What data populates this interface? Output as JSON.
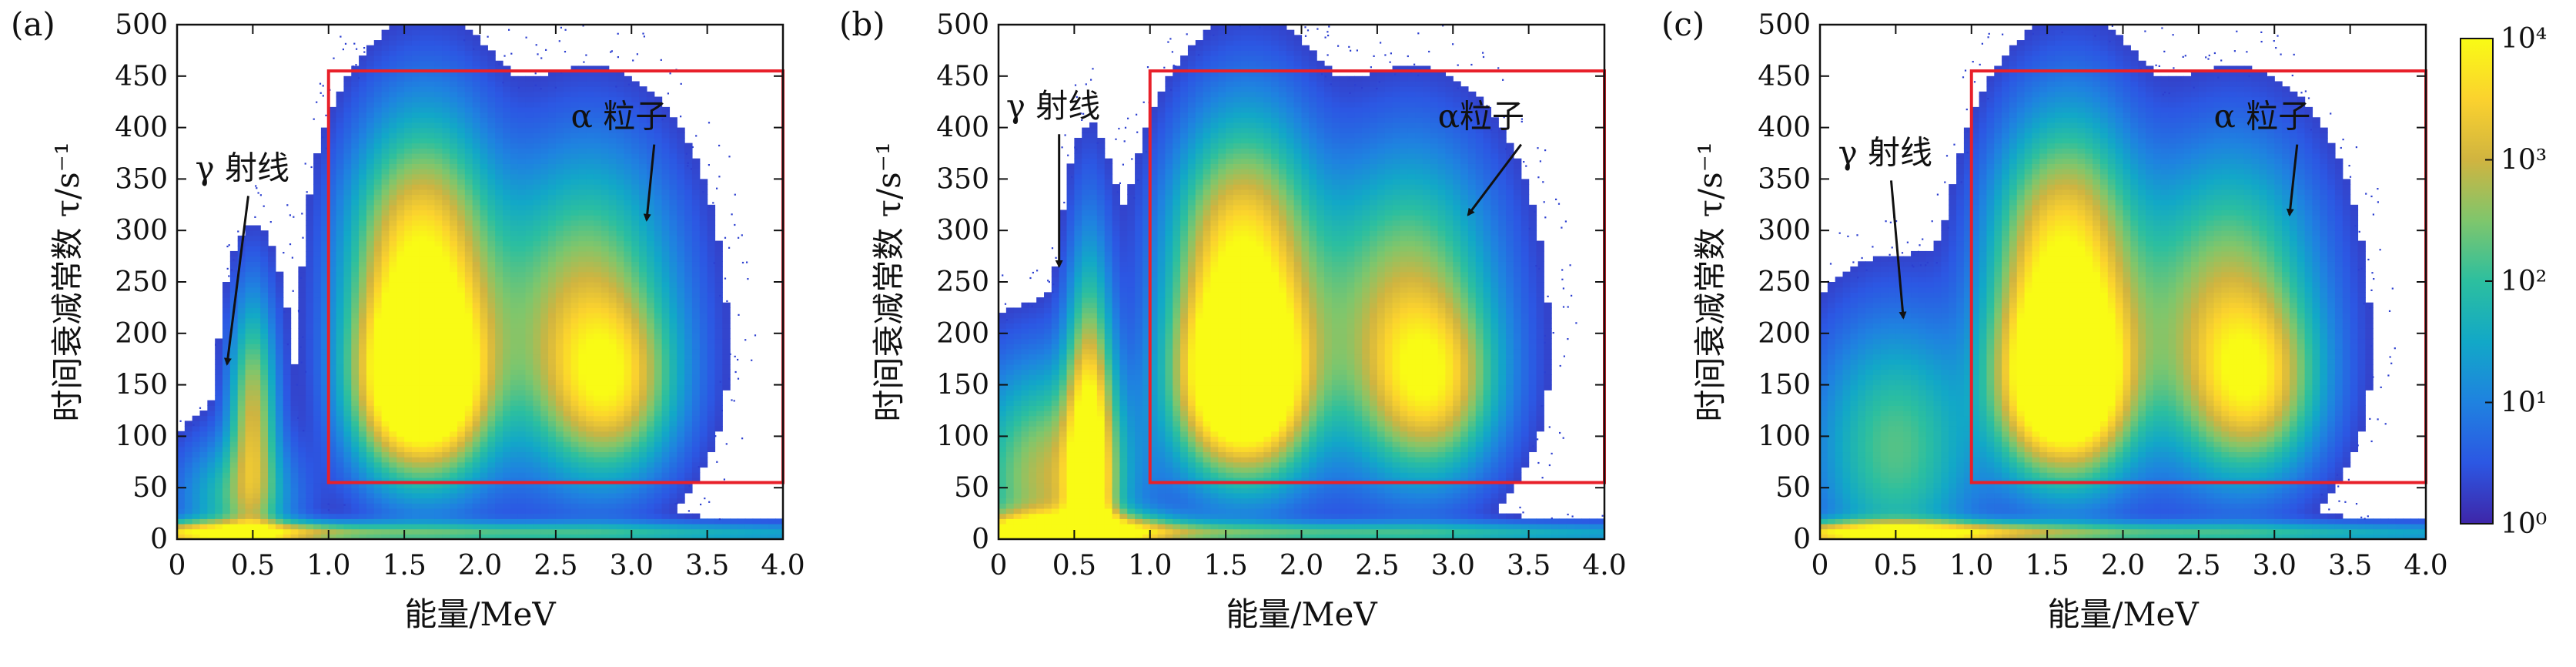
{
  "colors": {
    "roi": "#e8202a",
    "axis": "#111111",
    "colormap": [
      "#3e26a8",
      "#2c57e3",
      "#1f82e0",
      "#12a8c7",
      "#2cbf9f",
      "#7fc66c",
      "#d0b440",
      "#fbd22e",
      "#f9fb15"
    ]
  },
  "axes": {
    "xlabel": "能量/MeV",
    "ylabel": "时间衰减常数 τ/s⁻¹",
    "xlim": [
      0,
      4.0
    ],
    "ylim": [
      0,
      500
    ],
    "xticks": [
      "0",
      "0.5",
      "1.0",
      "1.5",
      "2.0",
      "2.5",
      "3.0",
      "3.5",
      "4.0"
    ],
    "yticks": [
      "0",
      "50",
      "100",
      "150",
      "200",
      "250",
      "300",
      "350",
      "400",
      "450",
      "500"
    ]
  },
  "colorbar": {
    "scale": "log",
    "range": [
      1,
      10000
    ],
    "tick_labels": [
      "10⁰",
      "10¹",
      "10²",
      "10³",
      "10⁴"
    ]
  },
  "chart_data": [
    {
      "type": "heatmap",
      "panel": "(a)",
      "xlabel": "能量/MeV",
      "ylabel": "时间衰减常数 τ/s⁻¹",
      "xlim": [
        0,
        4.0
      ],
      "ylim": [
        0,
        500
      ],
      "roi": {
        "x": [
          1.0,
          4.0
        ],
        "y": [
          55,
          455
        ]
      },
      "clusters": [
        {
          "name": "γ 射线",
          "energy_range": [
            0.05,
            0.75
          ],
          "tau_range": [
            5,
            260
          ]
        },
        {
          "name": "α 粒子",
          "energy_range": [
            1.1,
            3.8
          ],
          "tau_range": [
            60,
            440
          ]
        }
      ],
      "annotations": [
        {
          "text": "γ 射线",
          "arrow_to": {
            "x": 0.33,
            "y": 170
          }
        },
        {
          "text": "α 粒子",
          "arrow_to": {
            "x": 3.1,
            "y": 310
          }
        }
      ]
    },
    {
      "type": "heatmap",
      "panel": "(b)",
      "xlabel": "能量/MeV",
      "ylabel": "时间衰减常数 τ/s⁻¹",
      "xlim": [
        0,
        4.0
      ],
      "ylim": [
        0,
        500
      ],
      "roi": {
        "x": [
          1.0,
          4.0
        ],
        "y": [
          55,
          455
        ]
      },
      "clusters": [
        {
          "name": "γ 射线",
          "energy_range": [
            0.0,
            0.9
          ],
          "tau_range": [
            0,
            400
          ]
        },
        {
          "name": "α 粒子",
          "energy_range": [
            1.1,
            3.7
          ],
          "tau_range": [
            60,
            430
          ]
        }
      ],
      "annotations": [
        {
          "text": "γ 射线",
          "arrow_to": {
            "x": 0.4,
            "y": 265
          }
        },
        {
          "text": "α粒子",
          "arrow_to": {
            "x": 3.1,
            "y": 315
          }
        }
      ]
    },
    {
      "type": "heatmap",
      "panel": "(c)",
      "xlabel": "能量/MeV",
      "ylabel": "时间衰减常数 τ/s⁻¹",
      "xlim": [
        0,
        4.0
      ],
      "ylim": [
        0,
        500
      ],
      "roi": {
        "x": [
          1.0,
          4.0
        ],
        "y": [
          55,
          455
        ]
      },
      "clusters": [
        {
          "name": "γ 射线",
          "energy_range": [
            0.0,
            1.0
          ],
          "tau_range": [
            5,
            230
          ]
        },
        {
          "name": "α 粒子",
          "energy_range": [
            1.1,
            3.7
          ],
          "tau_range": [
            60,
            440
          ]
        }
      ],
      "annotations": [
        {
          "text": "γ 射线",
          "arrow_to": {
            "x": 0.55,
            "y": 215
          }
        },
        {
          "text": "α 粒子",
          "arrow_to": {
            "x": 3.1,
            "y": 315
          }
        }
      ]
    }
  ]
}
